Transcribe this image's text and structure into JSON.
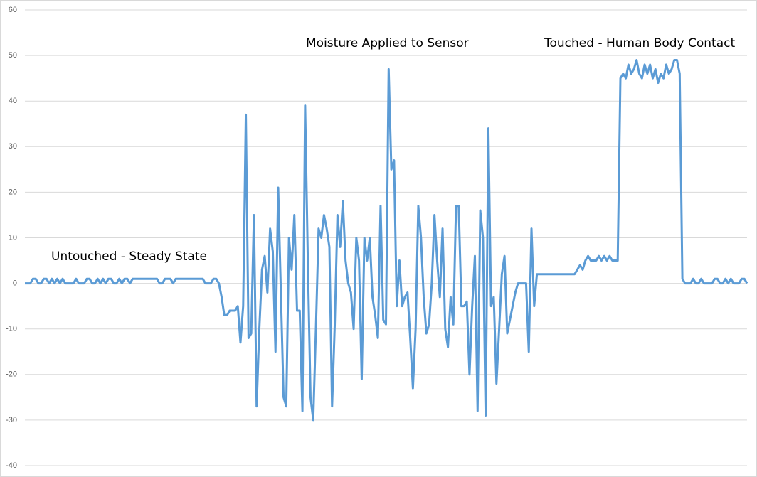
{
  "chart_data": {
    "type": "line",
    "annotations": [
      "Untouched - Steady State",
      "Moisture Applied to Sensor",
      "Touched - Human Body Contact"
    ],
    "color": "#5b9bd5",
    "values": [
      0,
      0,
      0,
      1,
      1,
      0,
      0,
      1,
      1,
      0,
      1,
      0,
      1,
      0,
      1,
      0,
      0,
      0,
      0,
      1,
      0,
      0,
      0,
      1,
      1,
      0,
      0,
      1,
      0,
      1,
      0,
      1,
      1,
      0,
      0,
      1,
      0,
      1,
      1,
      0,
      1,
      1,
      1,
      1,
      1,
      1,
      1,
      1,
      1,
      1,
      0,
      0,
      1,
      1,
      1,
      0,
      1,
      1,
      1,
      1,
      1,
      1,
      1,
      1,
      1,
      1,
      1,
      0,
      0,
      0,
      1,
      1,
      0,
      -3,
      -7,
      -7,
      -6,
      -6,
      -6,
      -5,
      -13,
      -5,
      37,
      -12,
      -11,
      15,
      -27,
      -10,
      3,
      6,
      -2,
      12,
      7,
      -15,
      21,
      -2,
      -25,
      -27,
      10,
      3,
      15,
      -6,
      -6,
      -28,
      39,
      5,
      -25,
      -30,
      -10,
      12,
      10,
      15,
      12,
      8,
      -27,
      -9,
      15,
      8,
      18,
      5,
      0,
      -2,
      -10,
      10,
      5,
      -21,
      10,
      5,
      10,
      -3,
      -7,
      -12,
      17,
      -8,
      -9,
      47,
      25,
      27,
      -5,
      5,
      -5,
      -3,
      -2,
      -12,
      -23,
      -10,
      17,
      10,
      -3,
      -11,
      -9,
      0,
      15,
      5,
      -3,
      12,
      -10,
      -14,
      -3,
      -9,
      17,
      17,
      -5,
      -5,
      -4,
      -20,
      -5,
      6,
      -28,
      16,
      10,
      -29,
      34,
      -5,
      -3,
      -22,
      -10,
      2,
      6,
      -11,
      -8,
      -5,
      -2,
      0,
      0,
      0,
      0,
      -15,
      12,
      -5,
      2,
      2,
      2,
      2,
      2,
      2,
      2,
      2,
      2,
      2,
      2,
      2,
      2,
      2,
      2,
      3,
      4,
      3,
      5,
      6,
      5,
      5,
      5,
      6,
      5,
      6,
      5,
      6,
      5,
      5,
      5,
      45,
      46,
      45,
      48,
      46,
      47,
      49,
      46,
      45,
      48,
      46,
      48,
      45,
      47,
      44,
      46,
      45,
      48,
      46,
      47,
      49,
      49,
      46,
      1,
      0,
      0,
      0,
      1,
      0,
      0,
      1,
      0,
      0,
      0,
      0,
      1,
      1,
      0,
      0,
      1,
      0,
      1,
      0,
      0,
      0,
      1,
      1,
      0
    ],
    "ylim": [
      -40,
      60
    ],
    "yticks": [
      -40,
      -30,
      -20,
      -10,
      0,
      10,
      20,
      30,
      40,
      50,
      60
    ],
    "grid": true
  }
}
